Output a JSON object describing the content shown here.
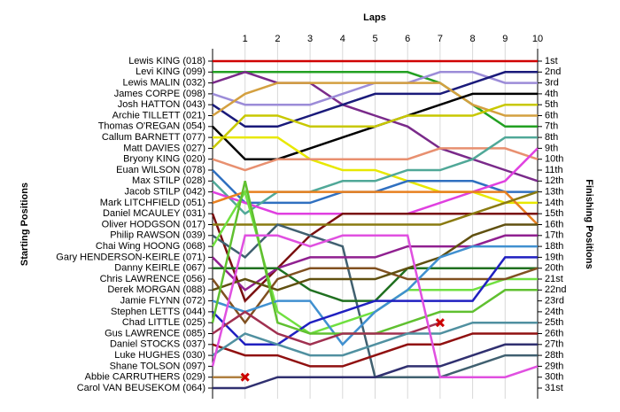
{
  "chart_data": {
    "type": "lap",
    "title": "Laps",
    "ylabel": "Starting Positions",
    "y2label": "Finishing Positions",
    "x": [
      0,
      1,
      2,
      3,
      4,
      5,
      6,
      7,
      8,
      9,
      10
    ],
    "xlim": [
      0,
      10
    ],
    "xticks": [
      1,
      2,
      3,
      4,
      5,
      6,
      7,
      8,
      9,
      10
    ],
    "ylim": [
      1,
      31
    ],
    "grid": true,
    "finish_labels": [
      "1st",
      "2nd",
      "3rd",
      "4th",
      "5th",
      "6th",
      "7th",
      "8th",
      "9th",
      "10th",
      "11th",
      "12th",
      "13th",
      "14th",
      "15th",
      "16th",
      "17th",
      "18th",
      "19th",
      "20th",
      "21st",
      "22nd",
      "23rd",
      "24th",
      "25th",
      "26th",
      "27th",
      "28th",
      "29th",
      "30th",
      "31st"
    ],
    "retired_marker": "#cc0000",
    "series": [
      {
        "name": "Lewis KING (018)",
        "color": "#d00000",
        "values": [
          1,
          1,
          1,
          1,
          1,
          1,
          1,
          1,
          1,
          1,
          1
        ]
      },
      {
        "name": "Levi KING (099)",
        "color": "#22a022",
        "values": [
          2,
          2,
          2,
          2,
          2,
          2,
          2,
          3,
          5,
          7,
          7
        ]
      },
      {
        "name": "Lewis MALIN (032)",
        "color": "#7a2a8a",
        "values": [
          3,
          2,
          3,
          3,
          5,
          6,
          7,
          9,
          10,
          11,
          12
        ]
      },
      {
        "name": "James CORPE (098)",
        "color": "#9c8cd8",
        "values": [
          4,
          5,
          5,
          5,
          4,
          3,
          3,
          2,
          2,
          3,
          3
        ]
      },
      {
        "name": "Josh HATTON (043)",
        "color": "#1a1a7a",
        "values": [
          5,
          7,
          7,
          6,
          5,
          4,
          4,
          4,
          3,
          2,
          2
        ]
      },
      {
        "name": "Archie TILLETT (021)",
        "color": "#d4a040",
        "values": [
          6,
          4,
          3,
          3,
          3,
          3,
          3,
          3,
          5,
          6,
          6
        ]
      },
      {
        "name": "Thomas O'REGAN (054)",
        "color": "#000000",
        "values": [
          7,
          10,
          10,
          9,
          8,
          7,
          6,
          5,
          4,
          4,
          4
        ]
      },
      {
        "name": "Callum BARNETT (077)",
        "color": "#e8e800",
        "values": [
          8,
          8,
          8,
          10,
          11,
          11,
          12,
          13,
          13,
          14,
          14
        ]
      },
      {
        "name": "Matt DAVIES (027)",
        "color": "#c8c800",
        "values": [
          9,
          6,
          6,
          7,
          7,
          7,
          6,
          6,
          6,
          5,
          5
        ]
      },
      {
        "name": "Bryony KING (020)",
        "color": "#e89070",
        "values": [
          10,
          11,
          10,
          10,
          10,
          10,
          10,
          9,
          9,
          9,
          10
        ]
      },
      {
        "name": "Euan WILSON (078)",
        "color": "#3070c0",
        "values": [
          11,
          14,
          14,
          14,
          13,
          13,
          12,
          12,
          12,
          13,
          13
        ]
      },
      {
        "name": "Max STILP (028)",
        "color": "#50a898",
        "values": [
          12,
          15,
          13,
          13,
          12,
          12,
          11,
          11,
          10,
          8,
          8
        ]
      },
      {
        "name": "Jacob STILP (042)",
        "color": "#e040e0",
        "values": [
          13,
          14,
          15,
          15,
          15,
          15,
          15,
          14,
          13,
          12,
          9
        ]
      },
      {
        "name": "Mark LITCHFIELD (051)",
        "color": "#e88020",
        "values": [
          14,
          13,
          13,
          13,
          13,
          13,
          13,
          13,
          13,
          13,
          16
        ]
      },
      {
        "name": "Daniel MCAULEY (031)",
        "color": "#7a1010",
        "values": [
          15,
          23,
          20,
          17,
          15,
          15,
          15,
          15,
          15,
          15,
          15
        ]
      },
      {
        "name": "Oliver HODGSON (017)",
        "color": "#8a7a10",
        "values": [
          16,
          16,
          16,
          16,
          16,
          16,
          16,
          16,
          15,
          14,
          13
        ]
      },
      {
        "name": "Philip RAWSON (039)",
        "color": "#406070",
        "values": [
          17,
          19,
          16,
          17,
          18,
          30,
          30,
          30,
          29,
          28,
          28
        ]
      },
      {
        "name": "Chai Wing HOONG (068)",
        "color": "#70e040",
        "values": [
          18,
          13,
          24,
          26,
          25,
          24,
          22,
          22,
          22,
          21,
          21
        ]
      },
      {
        "name": "Gary HENDERSON-KEIRLE (071)",
        "color": "#902090",
        "values": [
          19,
          22,
          20,
          19,
          19,
          19,
          18,
          18,
          18,
          17,
          17
        ]
      },
      {
        "name": "Danny KEIRLE (067)",
        "color": "#207020",
        "values": [
          20,
          20,
          20,
          22,
          23,
          23,
          20,
          20,
          20,
          20,
          20
        ]
      },
      {
        "name": "Chris LAWRENCE (056)",
        "color": "#805020",
        "values": [
          21,
          25,
          21,
          20,
          20,
          20,
          21,
          21,
          21,
          21,
          20
        ]
      },
      {
        "name": "Derek MORGAN (088)",
        "color": "#605010",
        "values": [
          22,
          21,
          22,
          21,
          21,
          21,
          20,
          19,
          17,
          16,
          16
        ]
      },
      {
        "name": "Jamie FLYNN (072)",
        "color": "#4090d0",
        "values": [
          23,
          24,
          23,
          23,
          27,
          24,
          22,
          19,
          18,
          18,
          18
        ]
      },
      {
        "name": "Stephen LETTS (044)",
        "color": "#2020c0",
        "values": [
          24,
          27,
          27,
          25,
          24,
          23,
          23,
          23,
          23,
          19,
          19
        ]
      },
      {
        "name": "Chad LITTLE (025)",
        "color": "#60c030",
        "values": [
          25,
          12,
          25,
          26,
          26,
          26,
          25,
          24,
          24,
          22,
          22
        ]
      },
      {
        "name": "Gus LAWRENCE (085)",
        "color": "#a03050",
        "values": [
          26,
          24,
          26,
          27,
          26,
          26,
          26,
          25,
          null,
          null,
          null
        ]
      },
      {
        "name": "Daniel STOCKS (037)",
        "color": "#901010",
        "values": [
          27,
          28,
          28,
          29,
          29,
          28,
          27,
          27,
          26,
          26,
          26
        ]
      },
      {
        "name": "Luke HUGHES (030)",
        "color": "#5090a0",
        "values": [
          28,
          26,
          27,
          28,
          28,
          27,
          26,
          26,
          25,
          25,
          25
        ]
      },
      {
        "name": "Shane TOLSON (097)",
        "color": "#e050e0",
        "values": [
          29,
          17,
          17,
          18,
          17,
          17,
          17,
          30,
          30,
          30,
          29
        ]
      },
      {
        "name": "Abbie CARRUTHERS (029)",
        "color": "#b08040",
        "values": [
          30,
          30,
          null,
          null,
          null,
          null,
          null,
          null,
          null,
          null,
          null
        ]
      },
      {
        "name": "Carol VAN BEUSEKOM (064)",
        "color": "#303070",
        "values": [
          31,
          31,
          30,
          30,
          30,
          30,
          29,
          29,
          28,
          27,
          27
        ]
      }
    ]
  }
}
